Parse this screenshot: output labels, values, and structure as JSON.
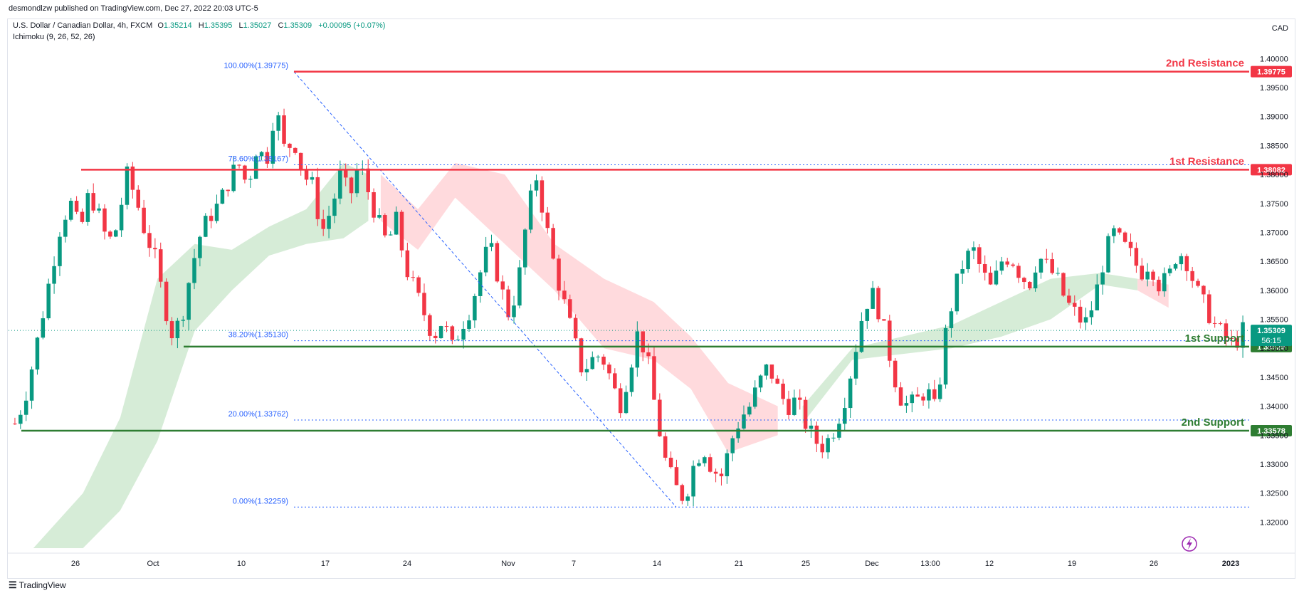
{
  "publisher": "desmondlzw published on TradingView.com, Dec 27, 2022 20:03 UTC-5",
  "footer": {
    "brand": "TradingView"
  },
  "legend": {
    "symbol": "U.S. Dollar / Canadian Dollar, 4h, FXCM",
    "open_label": "O",
    "open": "1.35214",
    "high_label": "H",
    "high": "1.35395",
    "low_label": "L",
    "low": "1.35027",
    "close_label": "C",
    "close": "1.35309",
    "change": "+0.00095 (+0.07%)",
    "indicator": "Ichimoku (9, 26, 52, 26)"
  },
  "price_unit": "CAD",
  "colors": {
    "up": "#089981",
    "down": "#f23645",
    "resistance": "#f23645",
    "support": "#2e7d32",
    "fib": "#2962ff",
    "cloud_bull": "#c8e6c9",
    "cloud_bear": "#ffcdd2"
  },
  "chart_data": {
    "type": "candlestick",
    "timeframe": "4h",
    "x_ticks": [
      "26",
      "Oct",
      "10",
      "17",
      "24",
      "Nov",
      "7",
      "14",
      "21",
      "25",
      "Dec",
      "13:00",
      "12",
      "19",
      "26",
      "2023"
    ],
    "y_ticks": [
      "1.40000",
      "1.39500",
      "1.39000",
      "1.38500",
      "1.38000",
      "1.37500",
      "1.37000",
      "1.36500",
      "1.36000",
      "1.35500",
      "1.35000",
      "1.34500",
      "1.34000",
      "1.33500",
      "1.33000",
      "1.32500",
      "1.32000"
    ],
    "ylim": [
      1.3155,
      1.4025
    ],
    "last_price": {
      "value": "1.35309",
      "countdown": "56:15"
    },
    "levels": [
      {
        "name": "2nd Resistance",
        "value": 1.39775,
        "label": "1.39775",
        "kind": "resistance"
      },
      {
        "name": "1st Resistance",
        "value": 1.38082,
        "label": "1.38082",
        "kind": "resistance"
      },
      {
        "name": "1st Support",
        "value": 1.35029,
        "label": "1.35029",
        "kind": "support"
      },
      {
        "name": "2nd Support",
        "value": 1.33578,
        "label": "1.33578",
        "kind": "support"
      }
    ],
    "fib_levels": [
      {
        "label": "100.00%(1.39775)",
        "value": 1.39775
      },
      {
        "label": "78.60%(1.38167)",
        "value": 1.38167
      },
      {
        "label": "38.20%(1.35130)",
        "value": 1.3513
      },
      {
        "label": "20.00%(1.33762)",
        "value": 1.33762
      },
      {
        "label": "0.00%(1.32259)",
        "value": 1.32259
      }
    ],
    "price_path": [
      1.337,
      1.341,
      1.348,
      1.356,
      1.364,
      1.372,
      1.375,
      1.37,
      1.377,
      1.373,
      1.368,
      1.371,
      1.38,
      1.376,
      1.37,
      1.366,
      1.358,
      1.352,
      1.356,
      1.364,
      1.37,
      1.373,
      1.375,
      1.379,
      1.382,
      1.378,
      1.385,
      1.382,
      1.392,
      1.384,
      1.386,
      1.38,
      1.378,
      1.37,
      1.374,
      1.38,
      1.376,
      1.382,
      1.377,
      1.372,
      1.368,
      1.372,
      1.364,
      1.36,
      1.356,
      1.352,
      1.355,
      1.35,
      1.354,
      1.357,
      1.363,
      1.368,
      1.362,
      1.356,
      1.36,
      1.372,
      1.38,
      1.372,
      1.364,
      1.358,
      1.352,
      1.346,
      1.348,
      1.349,
      1.345,
      1.34,
      1.346,
      1.353,
      1.348,
      1.338,
      1.33,
      1.326,
      1.324,
      1.33,
      1.333,
      1.329,
      1.328,
      1.334,
      1.338,
      1.34,
      1.344,
      1.347,
      1.343,
      1.34,
      1.341,
      1.337,
      1.334,
      1.333,
      1.336,
      1.34,
      1.347,
      1.355,
      1.36,
      1.356,
      1.349,
      1.342,
      1.34,
      1.341,
      1.343,
      1.339,
      1.352,
      1.36,
      1.365,
      1.367,
      1.363,
      1.36,
      1.365,
      1.366,
      1.363,
      1.361,
      1.366,
      1.364,
      1.362,
      1.358,
      1.356,
      1.354,
      1.358,
      1.365,
      1.37,
      1.368,
      1.366,
      1.363,
      1.365,
      1.361,
      1.362,
      1.367,
      1.365,
      1.36,
      1.357,
      1.354,
      1.352,
      1.3505,
      1.353
    ],
    "cloud_bull": [
      [
        0.02,
        1.3155,
        1.3155
      ],
      [
        0.06,
        1.3155,
        1.325
      ],
      [
        0.09,
        1.322,
        1.338
      ],
      [
        0.12,
        1.334,
        1.362
      ],
      [
        0.15,
        1.353,
        1.368
      ],
      [
        0.18,
        1.36,
        1.367
      ],
      [
        0.21,
        1.366,
        1.371
      ],
      [
        0.24,
        1.368,
        1.374
      ],
      [
        0.27,
        1.369,
        1.382
      ],
      [
        0.29,
        1.372,
        1.38
      ]
    ],
    "cloud_bear": [
      [
        0.3,
        1.372,
        1.38
      ],
      [
        0.33,
        1.367,
        1.374
      ],
      [
        0.36,
        1.376,
        1.382
      ],
      [
        0.4,
        1.368,
        1.38
      ],
      [
        0.44,
        1.36,
        1.368
      ],
      [
        0.48,
        1.35,
        1.362
      ],
      [
        0.52,
        1.348,
        1.358
      ],
      [
        0.55,
        1.343,
        1.352
      ],
      [
        0.58,
        1.332,
        1.344
      ],
      [
        0.62,
        1.335,
        1.34
      ]
    ],
    "cloud_bull2": [
      [
        0.64,
        1.337,
        1.34
      ],
      [
        0.68,
        1.348,
        1.35
      ],
      [
        0.72,
        1.349,
        1.352
      ],
      [
        0.76,
        1.35,
        1.354
      ],
      [
        0.8,
        1.352,
        1.358
      ],
      [
        0.84,
        1.355,
        1.362
      ],
      [
        0.88,
        1.361,
        1.363
      ],
      [
        0.91,
        1.36,
        1.362
      ]
    ],
    "cloud_bear2": [
      [
        0.91,
        1.36,
        1.362
      ],
      [
        0.935,
        1.357,
        1.361
      ]
    ]
  }
}
